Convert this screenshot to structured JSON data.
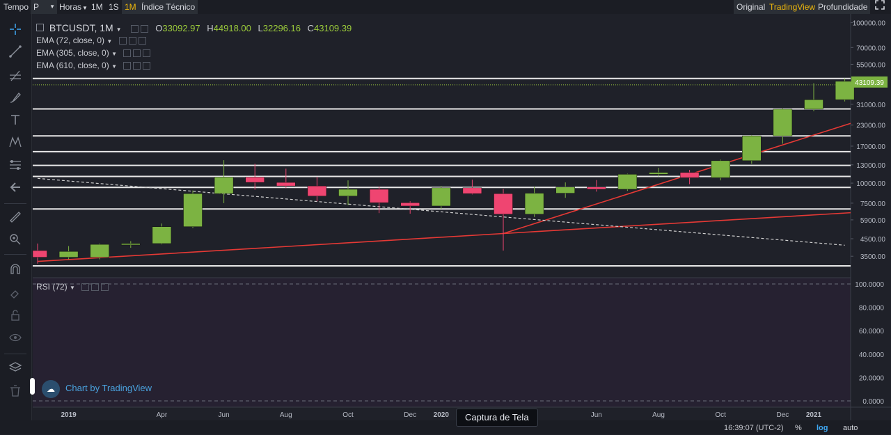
{
  "toolbar": {
    "tempo_label": "Tempo",
    "chart_type_value": "P",
    "horas_label": "Horas",
    "interval_1m": "1M",
    "interval_1s": "1S",
    "interval_1m_active": "1M",
    "indicators_label": "Índice Técnico",
    "view_original": "Original",
    "view_tradingview": "TradingView",
    "view_depth": "Profundidade",
    "accent_color": "#f0b90b"
  },
  "legend": {
    "symbol": "BTCUSDT, 1M",
    "open_label": "O",
    "open_value": "33092.97",
    "high_label": "H",
    "high_value": "44918.00",
    "low_label": "L",
    "low_value": "32296.16",
    "close_label": "C",
    "close_value": "43109.39",
    "ema1": "EMA (72, close, 0)",
    "ema2": "EMA (305, close, 0)",
    "ema3": "EMA (610, close, 0)",
    "rsi": "RSI (72)",
    "value_color": "#9ccc3b"
  },
  "watermark": "Chart by TradingView",
  "tooltip": "Captura de Tela",
  "bottom": {
    "time": "16:39:07 (UTC-2)",
    "percent": "%",
    "log": "log",
    "auto": "auto"
  },
  "chart_data": {
    "type": "candlestick",
    "symbol": "BTCUSDT",
    "interval": "1M",
    "scale": "log",
    "up_color": "#7cb342",
    "down_color": "#ef4571",
    "ylim": [
      2900,
      105000
    ],
    "y_ticks": [
      "100000.00",
      "70000.00",
      "55000.00",
      "31000.00",
      "23000.00",
      "17000.00",
      "13000.00",
      "10000.00",
      "7500.00",
      "5900.00",
      "4500.00",
      "3500.00"
    ],
    "x_ticks": [
      "2019",
      "Apr",
      "Jun",
      "Aug",
      "Oct",
      "Dec",
      "2020",
      "Jun",
      "Aug",
      "Oct",
      "Dec",
      "2021"
    ],
    "last_price_label": "43109.39",
    "candles": [
      {
        "t": "2018-12",
        "o": 3800,
        "h": 4200,
        "l": 3150,
        "c": 3450
      },
      {
        "t": "2019-01",
        "o": 3450,
        "h": 4050,
        "l": 3350,
        "c": 3750
      },
      {
        "t": "2019-02",
        "o": 3450,
        "h": 4200,
        "l": 3350,
        "c": 4150
      },
      {
        "t": "2019-03",
        "o": 4150,
        "h": 4350,
        "l": 3950,
        "c": 4200
      },
      {
        "t": "2019-04",
        "o": 4200,
        "h": 5600,
        "l": 4150,
        "c": 5350
      },
      {
        "t": "2019-05",
        "o": 5350,
        "h": 9000,
        "l": 5250,
        "c": 8600
      },
      {
        "t": "2019-06",
        "o": 8600,
        "h": 13900,
        "l": 7500,
        "c": 10900
      },
      {
        "t": "2019-07",
        "o": 10900,
        "h": 13200,
        "l": 9100,
        "c": 10100
      },
      {
        "t": "2019-08",
        "o": 10100,
        "h": 12300,
        "l": 9350,
        "c": 9600
      },
      {
        "t": "2019-09",
        "o": 9600,
        "h": 10950,
        "l": 7700,
        "c": 8300
      },
      {
        "t": "2019-10",
        "o": 8300,
        "h": 10400,
        "l": 7300,
        "c": 9150
      },
      {
        "t": "2019-11",
        "o": 9150,
        "h": 9500,
        "l": 6500,
        "c": 7550
      },
      {
        "t": "2019-12",
        "o": 7550,
        "h": 7700,
        "l": 6450,
        "c": 7200
      },
      {
        "t": "2020-01",
        "o": 7200,
        "h": 9600,
        "l": 6900,
        "c": 9350
      },
      {
        "t": "2020-02",
        "o": 9350,
        "h": 10500,
        "l": 8500,
        "c": 8600
      },
      {
        "t": "2020-03",
        "o": 8600,
        "h": 9200,
        "l": 3800,
        "c": 6400
      },
      {
        "t": "2020-04",
        "o": 6400,
        "h": 9500,
        "l": 6150,
        "c": 8650
      },
      {
        "t": "2020-05",
        "o": 8650,
        "h": 10100,
        "l": 8100,
        "c": 9450
      },
      {
        "t": "2020-06",
        "o": 9450,
        "h": 10450,
        "l": 8850,
        "c": 9150
      },
      {
        "t": "2020-07",
        "o": 9150,
        "h": 11450,
        "l": 8950,
        "c": 11350
      },
      {
        "t": "2020-08",
        "o": 11350,
        "h": 12450,
        "l": 11000,
        "c": 11650
      },
      {
        "t": "2020-09",
        "o": 11650,
        "h": 12100,
        "l": 9850,
        "c": 10800
      },
      {
        "t": "2020-10",
        "o": 10800,
        "h": 14000,
        "l": 10400,
        "c": 13800
      },
      {
        "t": "2020-11",
        "o": 13800,
        "h": 19900,
        "l": 13200,
        "c": 19700
      },
      {
        "t": "2020-12",
        "o": 19700,
        "h": 29300,
        "l": 17600,
        "c": 28900
      },
      {
        "t": "2021-01",
        "o": 28900,
        "h": 41900,
        "l": 28100,
        "c": 33100
      },
      {
        "t": "2021-02",
        "o": 33092.97,
        "h": 44918,
        "l": 32296.16,
        "c": 43109.39
      }
    ],
    "horizontal_levels": [
      44918,
      29000,
      19700,
      15700,
      12900,
      11000,
      9400,
      6900,
      3050
    ],
    "trendlines": [
      {
        "from": {
          "t": "2018-12",
          "p": 3250
        },
        "to": {
          "t": "2020-03",
          "p": 4850
        },
        "extend": "2021-02",
        "color": "#e53935"
      },
      {
        "from": {
          "t": "2020-03",
          "p": 4850
        },
        "to": {
          "t": "2020-12",
          "p": 17300
        },
        "extend": "2021-02",
        "color": "#e53935"
      },
      {
        "from": {
          "t": "2018-12",
          "p": 10700
        },
        "to": {
          "t": "2021-02",
          "p": 4100
        },
        "color": "#d0d0d0",
        "dashed": true
      }
    ],
    "rsi_ticks": [
      "100.0000",
      "80.0000",
      "60.0000",
      "40.0000",
      "20.0000",
      "0.0000"
    ],
    "rsi_range": [
      0,
      100
    ]
  }
}
